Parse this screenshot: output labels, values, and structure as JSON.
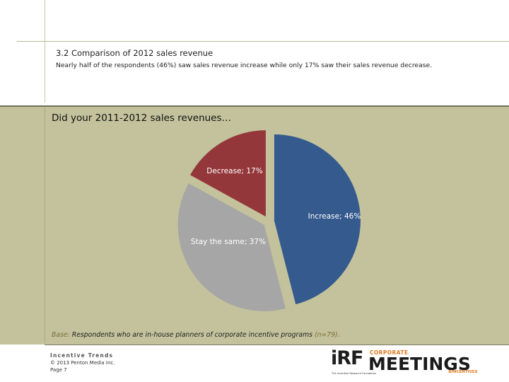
{
  "header": {
    "section_title": "3.2 Comparison of 2012 sales revenue",
    "section_subtitle": "Nearly half of the respondents (46%) saw sales revenue increase while only 17% saw their sales revenue decrease."
  },
  "question": "Did your 2011-2012 sales revenues…",
  "chart_data": {
    "type": "pie",
    "title": "",
    "slices": [
      {
        "label": "Increase",
        "value": 46,
        "color": "#345a8e",
        "data_label": "Increase; 46%"
      },
      {
        "label": "Stay the same",
        "value": 37,
        "color": "#a6a6a6",
        "data_label": "Stay the same; 37%"
      },
      {
        "label": "Decrease",
        "value": 17,
        "color": "#94373a",
        "data_label": "Decrease; 17%"
      }
    ],
    "legend": "none",
    "exploded": true
  },
  "base_note": {
    "prefix": "Base:",
    "text": "Respondents who are in-house planners of corporate incentive programs",
    "n": "(n=79)."
  },
  "footer": {
    "brand": "Incentive Trends",
    "copyright": "© 2013 Penton Media Inc.",
    "page": "Page 7"
  },
  "logos": {
    "irf": "iRF",
    "irf_tagline": "The Incentive Research Foundation",
    "cmi_top": "CORPORATE",
    "cmi_main": "MEETINGS",
    "cmi_bottom": "&INCENTIVES"
  },
  "colors": {
    "panel": "#c3c29c",
    "increase": "#345a8e",
    "stay": "#a6a6a6",
    "decrease": "#94373a"
  }
}
